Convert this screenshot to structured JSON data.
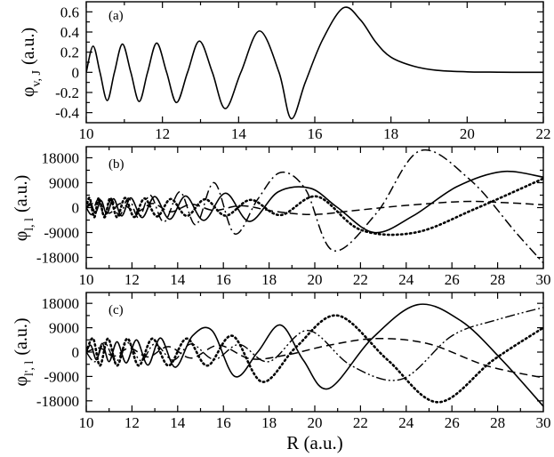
{
  "chart_data": [
    {
      "type": "line",
      "panel_label": "(a)",
      "ylabel_main": "φ",
      "ylabel_sub": "v, J",
      "ylabel_unit": "(a.u.)",
      "xlim": [
        10,
        22
      ],
      "ylim": [
        -0.5,
        0.7
      ],
      "xticks": [
        "10",
        "12",
        "14",
        "16",
        "18",
        "20",
        "22"
      ],
      "yticks": [
        "-0.4",
        "-0.2",
        "0",
        "0.2",
        "0.4",
        "0.6"
      ],
      "series": [
        {
          "style": "solid",
          "x": [
            10.0,
            10.18,
            10.36,
            10.55,
            10.74,
            10.95,
            11.17,
            11.39,
            11.61,
            11.85,
            12.11,
            12.37,
            12.66,
            12.97,
            13.31,
            13.65,
            14.06,
            14.55,
            15.06,
            15.38,
            15.75,
            16.2,
            16.75,
            17.2,
            17.6,
            18.0,
            18.6,
            19.2,
            20.0,
            20.6,
            21.2,
            22.0
          ],
          "y": [
            0.0,
            0.26,
            0.0,
            -0.28,
            0.0,
            0.28,
            0.0,
            -0.29,
            0.0,
            0.29,
            0.0,
            -0.3,
            0.0,
            0.31,
            0.0,
            -0.36,
            0.0,
            0.41,
            0.0,
            -0.46,
            -0.1,
            0.32,
            0.64,
            0.52,
            0.3,
            0.15,
            0.06,
            0.02,
            0.005,
            0.002,
            0.0,
            0.0
          ]
        }
      ]
    },
    {
      "type": "line",
      "panel_label": "(b)",
      "ylabel_main": "φ",
      "ylabel_sub": "l, l",
      "ylabel_unit": "(a.u.)",
      "xlim": [
        10,
        30
      ],
      "ylim": [
        -22000,
        22000
      ],
      "xticks": [
        "10",
        "12",
        "14",
        "16",
        "18",
        "20",
        "22",
        "24",
        "26",
        "28",
        "30"
      ],
      "yticks": [
        "-18000",
        "-9000",
        "0",
        "9000",
        "18000"
      ],
      "series": [
        {
          "style": "solid",
          "x": [
            10.0,
            10.2,
            10.4,
            10.65,
            10.9,
            11.2,
            11.55,
            11.95,
            12.45,
            13.0,
            13.65,
            14.35,
            15.15,
            16.1,
            17.15,
            18.4,
            19.8,
            21.0,
            22.6,
            24.3,
            26.2,
            28.2,
            30.0
          ],
          "y": [
            0,
            1500,
            -2000,
            2500,
            -2200,
            3200,
            -3000,
            3500,
            -3600,
            4000,
            -4200,
            4200,
            -4600,
            5200,
            -5000,
            5700,
            7000,
            0,
            -9000,
            -3000,
            7500,
            13000,
            11000
          ]
        },
        {
          "style": "dotted",
          "x": [
            10.0,
            10.15,
            10.35,
            10.55,
            10.8,
            11.05,
            11.35,
            11.7,
            12.1,
            12.55,
            13.1,
            13.7,
            14.4,
            15.2,
            16.1,
            17.2,
            18.5,
            20.1,
            22.0,
            24.4,
            27.0,
            30.0
          ],
          "y": [
            0,
            3500,
            -3500,
            3500,
            -3500,
            3500,
            -3500,
            3500,
            -3400,
            3300,
            -3200,
            3100,
            -3000,
            3000,
            -2900,
            2800,
            -2700,
            4000,
            -8000,
            -9000,
            -500,
            10500
          ]
        },
        {
          "style": "dashed",
          "x": [
            10.0,
            10.5,
            11.0,
            11.5,
            12.2,
            12.9,
            13.7,
            14.6,
            15.6,
            16.8,
            18.2,
            19.9,
            21.8,
            24.0,
            26.5,
            28.3,
            30.0
          ],
          "y": [
            0,
            2000,
            -2000,
            1500,
            -1500,
            1500,
            -1500,
            1200,
            -1000,
            700,
            -1300,
            -2500,
            -1000,
            800,
            2200,
            1800,
            1000
          ]
        },
        {
          "style": "dashdot",
          "x": [
            10.0,
            10.25,
            10.5,
            10.8,
            11.1,
            11.45,
            11.85,
            12.3,
            12.8,
            13.4,
            14.1,
            14.8,
            15.6,
            16.5,
            17.5,
            18.5,
            19.6,
            20.8,
            22.7,
            24.6,
            26.8,
            28.8,
            30.0
          ],
          "y": [
            0,
            -2500,
            2800,
            -2800,
            3000,
            -3000,
            3400,
            -3800,
            4500,
            -5200,
            5700,
            -6200,
            9000,
            -9500,
            3000,
            12700,
            6500,
            -15500,
            -2000,
            20500,
            10000,
            -9000,
            -20000
          ]
        }
      ]
    },
    {
      "type": "line",
      "panel_label": "(c)",
      "ylabel_main": "φ",
      "ylabel_sub": "l', l",
      "ylabel_unit": "(a.u.)",
      "xlim": [
        10,
        30
      ],
      "ylim": [
        -22000,
        22000
      ],
      "xticks": [
        "10",
        "12",
        "14",
        "16",
        "18",
        "20",
        "22",
        "24",
        "26",
        "28",
        "30"
      ],
      "yticks": [
        "-18000",
        "-9000",
        "0",
        "9000",
        "18000"
      ],
      "xlabel": "R (a.u.)",
      "series": [
        {
          "style": "solid",
          "x": [
            10.0,
            10.2,
            10.45,
            10.7,
            11.0,
            11.35,
            11.75,
            12.2,
            12.7,
            13.25,
            13.9,
            14.65,
            15.5,
            16.5,
            17.5,
            18.5,
            19.5,
            20.6,
            22.5,
            24.5,
            26.4,
            28.2,
            30.0
          ],
          "y": [
            0,
            2500,
            -2800,
            3200,
            -3500,
            3800,
            -4000,
            4500,
            -4800,
            5200,
            -5600,
            6000,
            8000,
            -9000,
            0,
            10000,
            -3000,
            -13500,
            5000,
            17500,
            11500,
            -3000,
            -20000
          ]
        },
        {
          "style": "dotted",
          "x": [
            10.0,
            10.3,
            10.6,
            10.95,
            11.35,
            11.8,
            12.3,
            12.9,
            13.6,
            14.4,
            15.3,
            16.4,
            17.7,
            19.2,
            21.0,
            23.2,
            25.4,
            27.8,
            30.0
          ],
          "y": [
            0,
            5000,
            -5000,
            5000,
            -5000,
            5000,
            -5000,
            5000,
            -5000,
            5000,
            -5000,
            6000,
            -11000,
            2000,
            13500,
            -3000,
            -18500,
            -3000,
            9000
          ]
        },
        {
          "style": "dashed",
          "x": [
            10.0,
            10.6,
            11.2,
            11.9,
            12.7,
            13.6,
            14.6,
            15.8,
            17.2,
            18.8,
            20.6,
            22.7,
            25.0,
            27.5,
            30.0
          ],
          "y": [
            0,
            1500,
            -1500,
            1500,
            -1800,
            2000,
            -2200,
            2500,
            -2500,
            -1000,
            2500,
            5000,
            3000,
            -5000,
            -9500
          ]
        },
        {
          "style": "dashdotdot",
          "x": [
            10.0,
            10.4,
            10.8,
            11.3,
            11.8,
            12.4,
            13.0,
            13.8,
            14.6,
            15.6,
            16.7,
            18.0,
            19.7,
            21.6,
            23.8,
            26.0,
            28.0,
            30.0
          ],
          "y": [
            0,
            -3500,
            3500,
            -3500,
            3500,
            -3200,
            3000,
            -3000,
            3000,
            -2700,
            2800,
            -3500,
            8000,
            -5000,
            -10000,
            6000,
            12000,
            16500
          ]
        }
      ]
    }
  ]
}
